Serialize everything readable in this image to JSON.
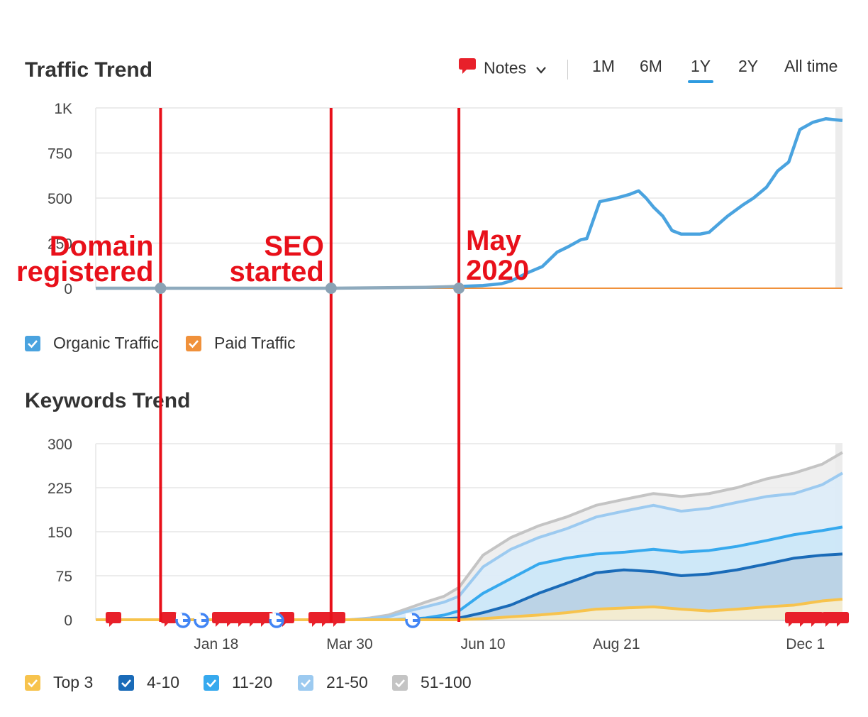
{
  "traffic": {
    "title": "Traffic Trend",
    "toolbar": {
      "notes_label": "Notes",
      "ranges": [
        "1M",
        "6M",
        "1Y",
        "2Y",
        "All time"
      ],
      "active_range": "1Y",
      "accent": "#2e9be0"
    },
    "legend": [
      {
        "label": "Organic Traffic",
        "color": "#4aa3df"
      },
      {
        "label": "Paid Traffic",
        "color": "#f0913b"
      }
    ]
  },
  "keywords": {
    "title": "Keywords Trend",
    "legend": [
      {
        "label": "Top 3",
        "color": "#f7c34d"
      },
      {
        "label": "4-10",
        "color": "#1a6bb8"
      },
      {
        "label": "11-20",
        "color": "#36a9ee"
      },
      {
        "label": "21-50",
        "color": "#9ccaf0"
      },
      {
        "label": "51-100",
        "color": "#c4c4c4"
      }
    ]
  },
  "annotations": [
    {
      "lines": [
        "Domain",
        "registered"
      ],
      "align": "end",
      "date": "2019-12-19"
    },
    {
      "lines": [
        "SEO",
        "started"
      ],
      "align": "end",
      "date": "2020-03-20"
    },
    {
      "lines": [
        "May",
        "2020"
      ],
      "align": "start",
      "date": "2020-05-28"
    }
  ],
  "chart_data": [
    {
      "type": "line",
      "title": "Traffic Trend",
      "x_ticks": [],
      "y_ticks": [
        "0",
        "250",
        "500",
        "750",
        "1K"
      ],
      "ylim": [
        0,
        1000
      ],
      "x_range": [
        "2019-11-14",
        "2020-12-21"
      ],
      "grid": true,
      "legend_position": "bottom-left",
      "series": [
        {
          "name": "Organic Traffic",
          "color": "#4aa3df",
          "x": [
            "2019-11-14",
            "2019-12-19",
            "2020-03-20",
            "2020-04-20",
            "2020-05-10",
            "2020-05-28",
            "2020-06-10",
            "2020-06-20",
            "2020-06-25",
            "2020-07-01",
            "2020-07-05",
            "2020-07-12",
            "2020-07-20",
            "2020-07-26",
            "2020-08-02",
            "2020-08-05",
            "2020-08-12",
            "2020-08-21",
            "2020-08-28",
            "2020-09-02",
            "2020-09-06",
            "2020-09-10",
            "2020-09-15",
            "2020-09-20",
            "2020-09-25",
            "2020-10-01",
            "2020-10-05",
            "2020-10-10",
            "2020-10-20",
            "2020-10-28",
            "2020-11-03",
            "2020-11-10",
            "2020-11-16",
            "2020-11-22",
            "2020-11-28",
            "2020-12-05",
            "2020-12-12",
            "2020-12-21"
          ],
          "values": [
            0,
            0,
            0,
            3,
            5,
            10,
            15,
            25,
            40,
            70,
            90,
            120,
            200,
            230,
            270,
            275,
            480,
            500,
            520,
            540,
            500,
            450,
            400,
            320,
            300,
            300,
            300,
            310,
            400,
            460,
            500,
            560,
            650,
            700,
            880,
            920,
            940,
            930
          ]
        },
        {
          "name": "Paid Traffic",
          "color": "#f0913b",
          "x": [
            "2019-11-14",
            "2020-12-21"
          ],
          "values": [
            0,
            0
          ]
        }
      ]
    },
    {
      "type": "area",
      "title": "Keywords Trend",
      "x_ticks": [
        "Jan 18",
        "Mar 30",
        "Jun 10",
        "Aug 21",
        "Dec 1"
      ],
      "y_ticks": [
        "0",
        "75",
        "150",
        "225",
        "300"
      ],
      "ylim": [
        0,
        300
      ],
      "x_range": [
        "2019-11-14",
        "2020-12-21"
      ],
      "grid": true,
      "legend_position": "bottom-left",
      "x": [
        "2019-11-14",
        "2020-03-30",
        "2020-04-10",
        "2020-04-20",
        "2020-05-01",
        "2020-05-10",
        "2020-05-20",
        "2020-05-28",
        "2020-06-10",
        "2020-06-25",
        "2020-07-10",
        "2020-07-25",
        "2020-08-10",
        "2020-08-25",
        "2020-09-10",
        "2020-09-25",
        "2020-10-10",
        "2020-10-25",
        "2020-11-10",
        "2020-11-25",
        "2020-12-10",
        "2020-12-21"
      ],
      "series": [
        {
          "name": "Top 3",
          "color": "#f7c34d",
          "values": [
            0,
            0,
            0,
            0,
            0,
            0,
            0,
            0,
            2,
            5,
            8,
            12,
            18,
            20,
            22,
            18,
            15,
            18,
            22,
            25,
            32,
            35
          ]
        },
        {
          "name": "4-10",
          "color": "#1a6bb8",
          "values": [
            0,
            0,
            0,
            0,
            0,
            1,
            2,
            3,
            12,
            25,
            45,
            62,
            80,
            85,
            82,
            75,
            78,
            85,
            95,
            105,
            110,
            112
          ]
        },
        {
          "name": "11-20",
          "color": "#36a9ee",
          "values": [
            0,
            0,
            0,
            0,
            1,
            3,
            8,
            15,
            45,
            70,
            95,
            105,
            112,
            115,
            120,
            115,
            118,
            125,
            135,
            145,
            152,
            158
          ]
        },
        {
          "name": "21-50",
          "color": "#9ccaf0",
          "values": [
            0,
            0,
            2,
            5,
            15,
            22,
            30,
            40,
            90,
            120,
            140,
            155,
            175,
            185,
            195,
            185,
            190,
            200,
            210,
            215,
            230,
            250
          ]
        },
        {
          "name": "51-100",
          "color": "#c4c4c4",
          "values": [
            0,
            0,
            3,
            8,
            20,
            30,
            40,
            55,
            110,
            140,
            160,
            175,
            195,
            205,
            215,
            210,
            215,
            225,
            240,
            250,
            265,
            285
          ]
        }
      ]
    }
  ]
}
